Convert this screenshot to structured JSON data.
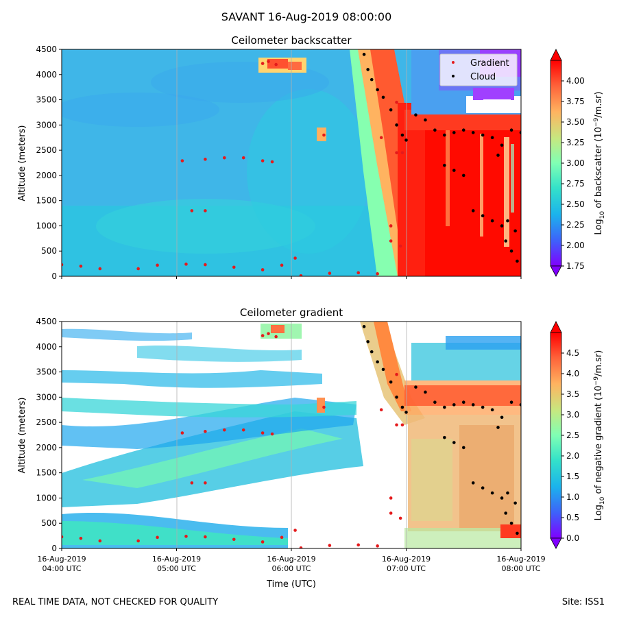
{
  "suptitle": "SAVANT 16-Aug-2019 08:00:00",
  "footer_left": "REAL TIME DATA, NOT CHECKED FOR QUALITY",
  "footer_right": "Site: ISS1",
  "colors": {
    "gradient_marker": "#e41a1c",
    "cloud_marker": "#000000"
  },
  "chart_data": [
    {
      "type": "heatmap",
      "title": "Ceilometer backscatter",
      "ylabel": "Altitude (meters)",
      "ylim": [
        0,
        4500
      ],
      "yticks": [
        0,
        500,
        1000,
        1500,
        2000,
        2500,
        3000,
        3500,
        4000,
        4500
      ],
      "xticks": [
        "04:00",
        "05:00",
        "06:00",
        "07:00",
        "08:00"
      ],
      "grid": "vertical",
      "legend": {
        "placement": "top-right",
        "entries": [
          "Gradient",
          "Cloud"
        ]
      },
      "colorbar": {
        "label_prefix": "Log",
        "label_sub": "10",
        "label_mid": " of backscatter (10",
        "label_sup": "−9",
        "label_suffix": "/m.sr)",
        "ticks": [
          "1.75",
          "2.00",
          "2.25",
          "2.50",
          "2.75",
          "3.00",
          "3.25",
          "3.50",
          "3.75",
          "4.00"
        ],
        "range": [
          1.75,
          4.25
        ],
        "colormap": "rainbow"
      },
      "series": [
        {
          "name": "Gradient",
          "marker": "red-dot",
          "points": [
            [
              "04:00",
              230
            ],
            [
              "04:10",
              200
            ],
            [
              "04:20",
              150
            ],
            [
              "04:40",
              150
            ],
            [
              "04:50",
              220
            ],
            [
              "05:05",
              240
            ],
            [
              "05:15",
              230
            ],
            [
              "05:30",
              180
            ],
            [
              "05:45",
              130
            ],
            [
              "05:55",
              220
            ],
            [
              "06:02",
              360
            ],
            [
              "06:05",
              10
            ],
            [
              "06:20",
              60
            ],
            [
              "06:35",
              70
            ],
            [
              "06:45",
              50
            ],
            [
              "05:03",
              2290
            ],
            [
              "05:15",
              2320
            ],
            [
              "05:25",
              2350
            ],
            [
              "05:35",
              2350
            ],
            [
              "05:45",
              2290
            ],
            [
              "05:50",
              2270
            ],
            [
              "05:08",
              1300
            ],
            [
              "05:15",
              1300
            ],
            [
              "05:45",
              4220
            ],
            [
              "05:48",
              4260
            ],
            [
              "05:52",
              4200
            ],
            [
              "06:17",
              2800
            ],
            [
              "06:47",
              2750
            ],
            [
              "06:52",
              1000
            ],
            [
              "06:52",
              700
            ],
            [
              "06:55",
              3450
            ],
            [
              "06:57",
              600
            ],
            [
              "06:55",
              2450
            ],
            [
              "06:58",
              2450
            ]
          ]
        },
        {
          "name": "Cloud",
          "marker": "black-dot",
          "points": [
            [
              "06:38",
              4400
            ],
            [
              "06:40",
              4100
            ],
            [
              "06:42",
              3900
            ],
            [
              "06:45",
              3700
            ],
            [
              "06:48",
              3550
            ],
            [
              "06:52",
              3300
            ],
            [
              "06:55",
              3000
            ],
            [
              "06:58",
              2800
            ],
            [
              "07:00",
              2700
            ],
            [
              "07:05",
              3200
            ],
            [
              "07:10",
              3100
            ],
            [
              "07:15",
              2900
            ],
            [
              "07:20",
              2800
            ],
            [
              "07:25",
              2850
            ],
            [
              "07:30",
              2900
            ],
            [
              "07:35",
              2850
            ],
            [
              "07:40",
              2800
            ],
            [
              "07:45",
              2750
            ],
            [
              "07:50",
              2600
            ],
            [
              "07:55",
              2900
            ],
            [
              "08:00",
              2850
            ],
            [
              "07:20",
              2200
            ],
            [
              "07:25",
              2100
            ],
            [
              "07:30",
              2000
            ],
            [
              "07:35",
              1300
            ],
            [
              "07:40",
              1200
            ],
            [
              "07:45",
              1100
            ],
            [
              "07:50",
              1000
            ],
            [
              "07:52",
              700
            ],
            [
              "07:55",
              500
            ],
            [
              "07:58",
              300
            ],
            [
              "07:48",
              2400
            ],
            [
              "07:53",
              1100
            ],
            [
              "07:57",
              900
            ]
          ]
        }
      ]
    },
    {
      "type": "heatmap",
      "title": "Ceilometer gradient",
      "xlabel": "Time (UTC)",
      "ylabel": "Altitude (meters)",
      "ylim": [
        0,
        4500
      ],
      "yticks": [
        0,
        500,
        1000,
        1500,
        2000,
        2500,
        3000,
        3500,
        4000,
        4500
      ],
      "xtick_labels": [
        [
          "16-Aug-2019",
          "04:00 UTC"
        ],
        [
          "16-Aug-2019",
          "05:00 UTC"
        ],
        [
          "16-Aug-2019",
          "06:00 UTC"
        ],
        [
          "16-Aug-2019",
          "07:00 UTC"
        ],
        [
          "16-Aug-2019",
          "08:00 UTC"
        ]
      ],
      "grid": "vertical",
      "colorbar": {
        "label_prefix": "Log",
        "label_sub": "10",
        "label_mid": " of negative gradient (10",
        "label_sup": "−9",
        "label_suffix": "/m.sr)",
        "ticks": [
          "0.0",
          "0.5",
          "1.0",
          "1.5",
          "2.0",
          "2.5",
          "3.0",
          "3.5",
          "4.0",
          "4.5"
        ],
        "range": [
          0,
          5
        ],
        "colormap": "rainbow"
      }
    }
  ]
}
